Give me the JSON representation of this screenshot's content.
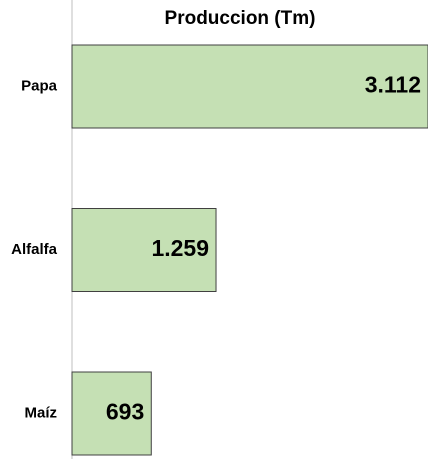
{
  "chart_data": {
    "type": "bar",
    "orientation": "horizontal",
    "title": "Produccion (Tm)",
    "categories": [
      "Papa",
      "Alfalfa",
      "Maíz"
    ],
    "values": [
      3112,
      1259,
      693
    ],
    "value_labels": [
      "3.112",
      "1.259",
      "693"
    ],
    "color": "#c5e0b4"
  }
}
